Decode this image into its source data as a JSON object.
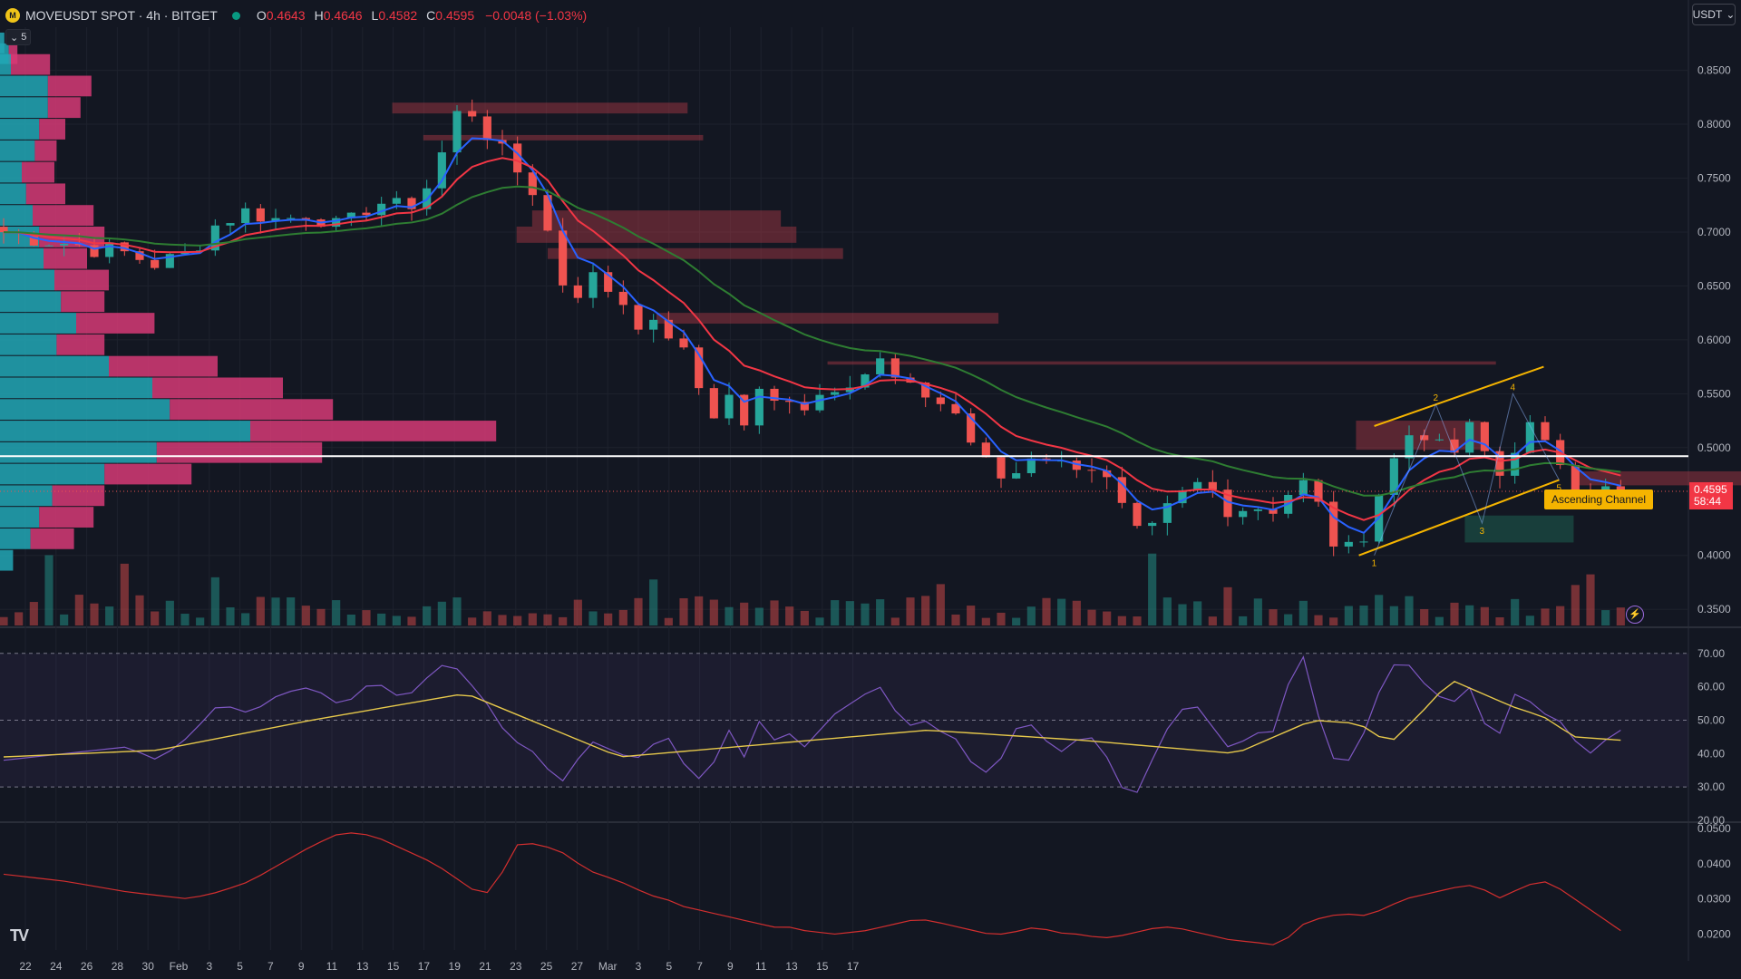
{
  "header": {
    "symbol_icon": "move-coin-icon",
    "title": "MOVEUSDT SPOT · 4h · BITGET",
    "ohlc": {
      "o_label": "O",
      "o": "0.4643",
      "h_label": "H",
      "h": "0.4646",
      "l_label": "L",
      "l": "0.4582",
      "c_label": "C",
      "c": "0.4595",
      "change": "−0.0048 (−1.03%)"
    },
    "volume_profile_badge": "5"
  },
  "currency_button": "USDT",
  "last_price": {
    "value": "0.4595",
    "countdown": "58:44"
  },
  "channel_label": "Ascending Channel",
  "colors": {
    "up": "#26a69a",
    "down": "#ef5350",
    "ema_fast": "#2962ff",
    "ema_mid": "#f23645",
    "ema_slow": "#2e7d32",
    "rsi": "#7e57c2",
    "rsi_ma": "#e6c84b",
    "channel": "#f5b400"
  },
  "chart_data": [
    {
      "type": "candlestick",
      "title": "MOVEUSDT SPOT · 4h · BITGET",
      "y_ticks": [
        "0.8500",
        "0.8000",
        "0.7500",
        "0.7000",
        "0.6500",
        "0.6000",
        "0.5500",
        "0.5000",
        "0.4000",
        "0.3500"
      ],
      "y_values": [
        0.85,
        0.8,
        0.75,
        0.7,
        0.65,
        0.6,
        0.55,
        0.5,
        0.4,
        0.35
      ],
      "ylim": [
        0.335,
        0.89
      ],
      "x_ticks": [
        "22",
        "24",
        "26",
        "28",
        "30",
        "Feb",
        "3",
        "5",
        "7",
        "9",
        "11",
        "13",
        "15",
        "17",
        "19",
        "21",
        "23",
        "25",
        "27",
        "Mar",
        "3",
        "5",
        "7",
        "9",
        "11",
        "13",
        "15",
        "17"
      ],
      "close_path": {
        "x": [
          0,
          4,
          8,
          10,
          12,
          14,
          16,
          18,
          20,
          22,
          24,
          26,
          28,
          29,
          30,
          31,
          32,
          33,
          34,
          35,
          36,
          37,
          38,
          40,
          41,
          42,
          43,
          44,
          45,
          46,
          47,
          48,
          49,
          50,
          51,
          52,
          54,
          56,
          57,
          58,
          59,
          60,
          61,
          62,
          63,
          64,
          65,
          66,
          67,
          68,
          69,
          70,
          71,
          72,
          73,
          74,
          75,
          76,
          77,
          78,
          79,
          80,
          81,
          82,
          83,
          84,
          85,
          86,
          87,
          88,
          89,
          90,
          91,
          92,
          93,
          94,
          95,
          96,
          97,
          98,
          99,
          100,
          101,
          102,
          103,
          104,
          105
        ],
        "y": [
          0.7,
          0.69,
          0.68,
          0.67,
          0.68,
          0.71,
          0.72,
          0.71,
          0.72,
          0.7,
          0.73,
          0.72,
          0.75,
          0.8,
          0.82,
          0.8,
          0.78,
          0.76,
          0.75,
          0.72,
          0.66,
          0.64,
          0.66,
          0.64,
          0.62,
          0.61,
          0.61,
          0.59,
          0.56,
          0.53,
          0.55,
          0.52,
          0.55,
          0.54,
          0.55,
          0.54,
          0.56,
          0.57,
          0.58,
          0.56,
          0.55,
          0.55,
          0.54,
          0.53,
          0.5,
          0.48,
          0.47,
          0.48,
          0.5,
          0.49,
          0.48,
          0.49,
          0.48,
          0.46,
          0.43,
          0.41,
          0.43,
          0.45,
          0.46,
          0.47,
          0.45,
          0.44,
          0.45,
          0.44,
          0.45,
          0.47,
          0.46,
          0.42,
          0.4,
          0.41,
          0.45,
          0.48,
          0.51,
          0.52,
          0.5,
          0.49,
          0.52,
          0.5,
          0.47,
          0.5,
          0.52,
          0.5,
          0.49,
          0.47,
          0.46,
          0.46,
          0.4595
        ]
      },
      "horizontal_level": 0.492,
      "last_price_level": 0.4595,
      "ascending_channel": {
        "upper": [
          [
            89,
            0.52
          ],
          [
            100,
            0.575
          ]
        ],
        "lower": [
          [
            88,
            0.4
          ],
          [
            101,
            0.47
          ]
        ],
        "wave_labels": [
          "1",
          "2",
          "3",
          "4",
          "5"
        ]
      },
      "volume_profile": {
        "price_bins": [
          0.875,
          0.865,
          0.855,
          0.835,
          0.815,
          0.795,
          0.775,
          0.755,
          0.735,
          0.715,
          0.695,
          0.675,
          0.655,
          0.635,
          0.615,
          0.595,
          0.575,
          0.555,
          0.535,
          0.515,
          0.495,
          0.475,
          0.455,
          0.435,
          0.415,
          0.395
        ],
        "up_volume": [
          2,
          4,
          5,
          22,
          22,
          18,
          16,
          10,
          12,
          15,
          18,
          20,
          25,
          28,
          35,
          26,
          50,
          70,
          78,
          115,
          72,
          48,
          24,
          18,
          14,
          6
        ],
        "down_volume": [
          0,
          4,
          18,
          20,
          15,
          12,
          10,
          15,
          18,
          28,
          30,
          20,
          25,
          20,
          36,
          22,
          50,
          60,
          75,
          113,
          76,
          40,
          24,
          25,
          20,
          0
        ]
      }
    },
    {
      "type": "line",
      "title": "RSI",
      "y_ticks": [
        "70.00",
        "60.00",
        "50.00",
        "40.00",
        "30.00",
        "20.00"
      ],
      "y_values": [
        70,
        60,
        50,
        40,
        30,
        20
      ],
      "ylim": [
        20,
        77
      ],
      "series": [
        {
          "x": [
            0,
            4,
            8,
            10,
            12,
            14,
            16,
            18,
            20,
            22,
            24,
            26,
            28,
            29,
            30,
            31,
            32,
            33,
            34,
            35,
            36,
            37,
            38,
            40,
            41,
            42,
            43,
            44,
            45,
            46,
            47,
            48,
            49,
            50,
            51,
            52,
            54,
            56,
            57,
            58,
            59,
            60,
            61,
            62,
            63,
            64,
            65,
            66,
            67,
            68,
            69,
            70,
            71,
            72,
            73,
            74,
            75,
            76,
            77,
            78,
            79,
            80,
            81,
            82,
            83,
            84,
            85,
            86,
            87,
            88,
            89,
            90,
            91,
            92,
            93,
            94,
            95,
            96,
            97,
            98,
            99,
            100,
            101,
            102,
            103,
            104,
            105
          ],
          "y": [
            38,
            40,
            42,
            38,
            45,
            55,
            52,
            58,
            60,
            54,
            62,
            56,
            65,
            68,
            62,
            58,
            50,
            44,
            42,
            38,
            30,
            36,
            44,
            40,
            38,
            42,
            46,
            38,
            32,
            36,
            48,
            38,
            50,
            44,
            46,
            42,
            52,
            58,
            60,
            52,
            48,
            50,
            46,
            44,
            36,
            34,
            40,
            50,
            48,
            42,
            40,
            46,
            44,
            36,
            26,
            30,
            44,
            50,
            56,
            52,
            44,
            40,
            48,
            44,
            50,
            76,
            58,
            40,
            36,
            42,
            55,
            66,
            68,
            62,
            58,
            54,
            62,
            50,
            44,
            58,
            56,
            52,
            50,
            44,
            40,
            44,
            47
          ]
        },
        {
          "x": [
            0,
            10,
            20,
            30,
            40,
            50,
            60,
            70,
            80,
            85,
            88,
            90,
            92,
            94,
            96,
            98,
            100,
            102,
            105
          ],
          "y": [
            39,
            41,
            50,
            58,
            39,
            43,
            47,
            44,
            40,
            50,
            49,
            43,
            52,
            62,
            58,
            54,
            51,
            45,
            44
          ]
        }
      ]
    },
    {
      "type": "line",
      "title": "",
      "y_ticks": [
        "0.0500",
        "0.0400",
        "0.0300",
        "0.0200"
      ],
      "y_values": [
        0.05,
        0.04,
        0.03,
        0.02
      ],
      "ylim": [
        0.0155,
        0.051
      ],
      "series": [
        {
          "x": [
            0,
            4,
            8,
            10,
            12,
            14,
            16,
            18,
            20,
            22,
            24,
            26,
            28,
            29,
            30,
            31,
            32,
            33,
            34,
            35,
            36,
            37,
            38,
            40,
            41,
            42,
            43,
            44,
            45,
            46,
            47,
            48,
            49,
            50,
            51,
            52,
            54,
            56,
            57,
            58,
            59,
            60,
            61,
            62,
            63,
            64,
            65,
            66,
            67,
            68,
            69,
            70,
            71,
            72,
            73,
            74,
            75,
            76,
            77,
            78,
            79,
            80,
            81,
            82,
            83,
            84,
            85,
            86,
            87,
            88,
            89,
            90,
            91,
            92,
            93,
            94,
            95,
            96,
            97,
            98,
            99,
            100,
            101,
            102,
            103,
            104,
            105
          ],
          "y": [
            0.037,
            0.035,
            0.032,
            0.031,
            0.03,
            0.032,
            0.035,
            0.04,
            0.045,
            0.049,
            0.048,
            0.044,
            0.04,
            0.037,
            0.034,
            0.031,
            0.033,
            0.045,
            0.046,
            0.045,
            0.044,
            0.041,
            0.038,
            0.035,
            0.033,
            0.031,
            0.03,
            0.028,
            0.027,
            0.026,
            0.025,
            0.024,
            0.023,
            0.022,
            0.022,
            0.021,
            0.02,
            0.021,
            0.022,
            0.023,
            0.024,
            0.024,
            0.023,
            0.022,
            0.021,
            0.02,
            0.02,
            0.021,
            0.022,
            0.021,
            0.02,
            0.02,
            0.019,
            0.019,
            0.02,
            0.021,
            0.022,
            0.022,
            0.021,
            0.02,
            0.019,
            0.018,
            0.018,
            0.017,
            0.017,
            0.022,
            0.024,
            0.025,
            0.026,
            0.025,
            0.026,
            0.028,
            0.03,
            0.031,
            0.032,
            0.033,
            0.034,
            0.033,
            0.03,
            0.032,
            0.034,
            0.035,
            0.033,
            0.03,
            0.027,
            0.024,
            0.021
          ]
        }
      ]
    }
  ]
}
